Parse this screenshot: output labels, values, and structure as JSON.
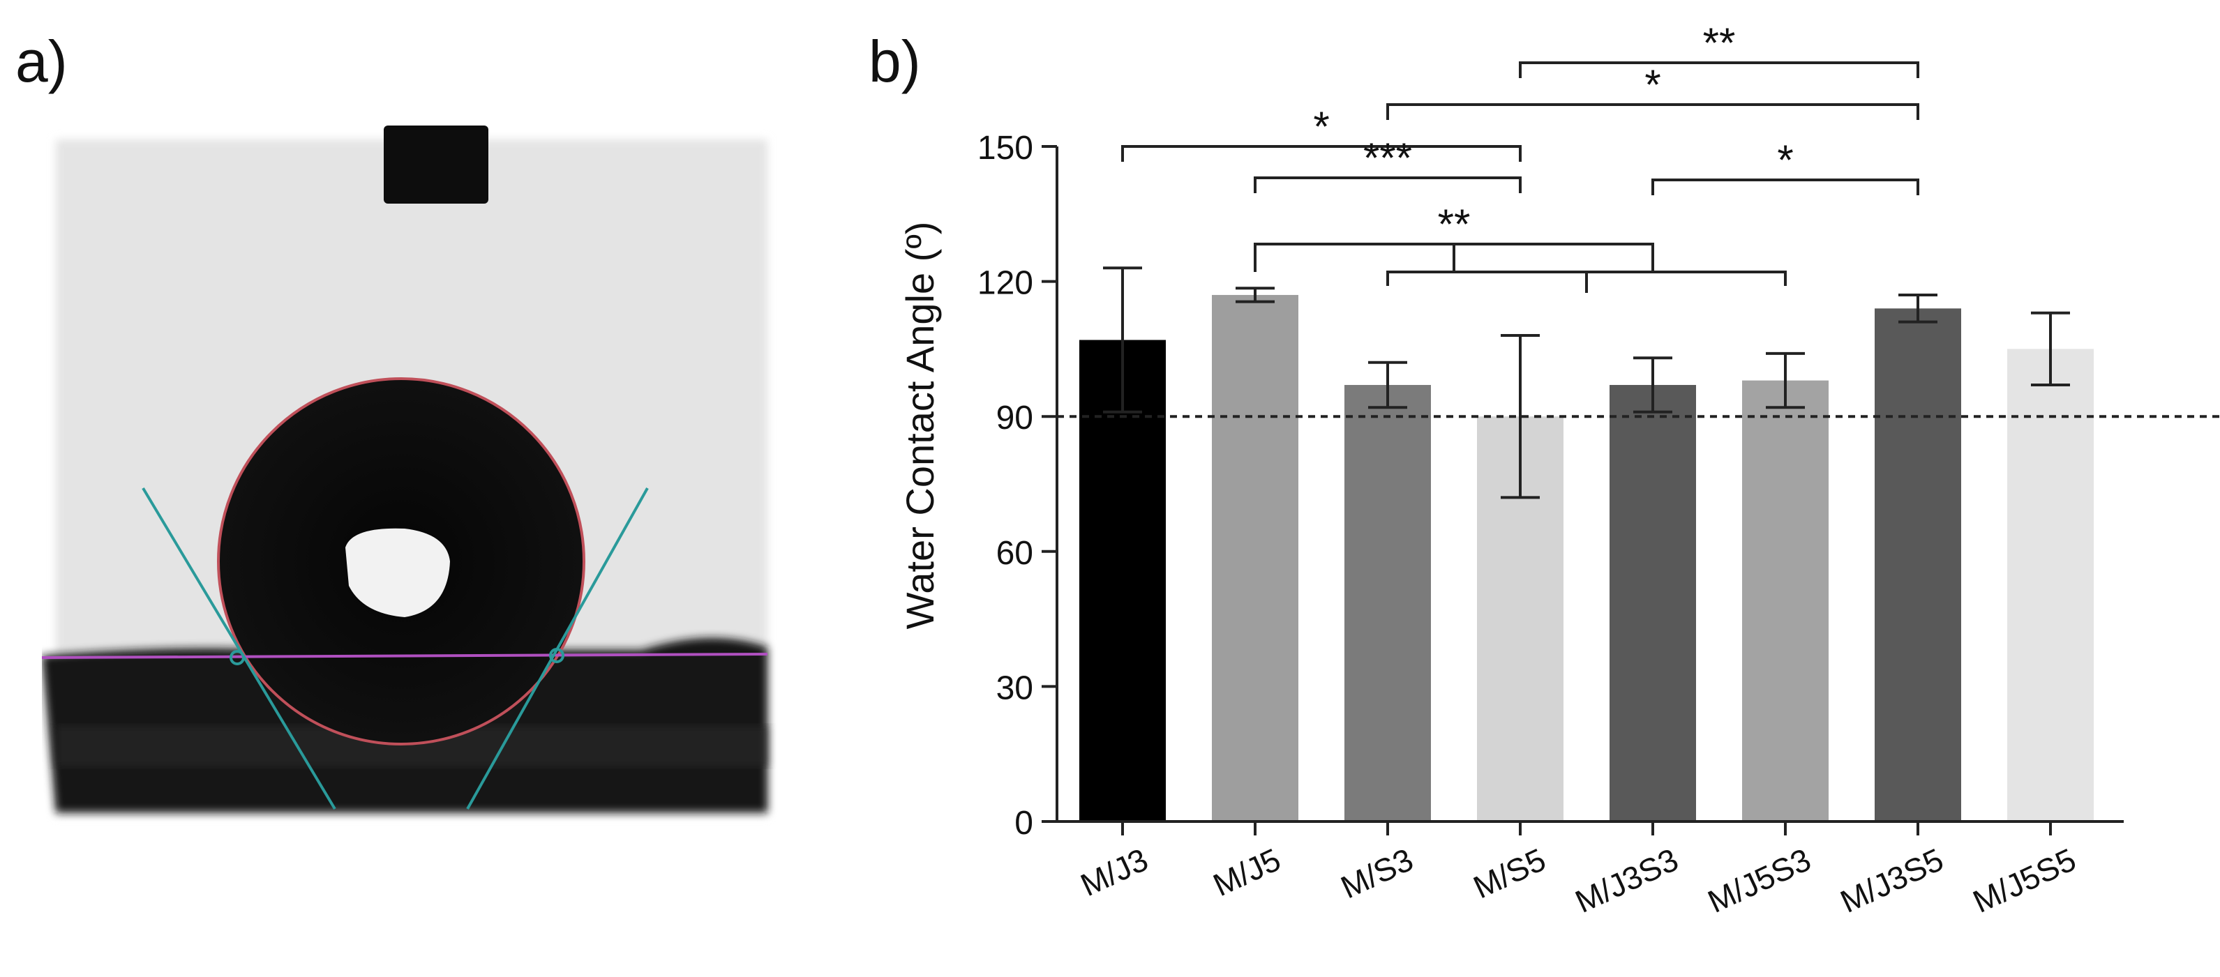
{
  "panels": {
    "a_label": "a)",
    "b_label": "b)"
  },
  "photo": {
    "subject": "sessile water droplet on membrane surface"
  },
  "chart_data": {
    "type": "bar",
    "title": "",
    "xlabel": "",
    "ylabel": "Water Contact Angle (º)",
    "ylim": [
      0,
      150
    ],
    "yticks": [
      0,
      30,
      60,
      90,
      120,
      150
    ],
    "reference_line": 90,
    "categories": [
      "M/J3",
      "M/J5",
      "M/S3",
      "M/S5",
      "M/J3S3",
      "M/J5S3",
      "M/J3S5",
      "M/J5S5"
    ],
    "values": [
      107,
      117,
      97,
      90,
      97,
      98,
      114,
      105
    ],
    "errors": [
      16,
      1.5,
      5,
      18,
      6,
      6,
      3,
      8
    ],
    "colors": [
      "#000000",
      "#9e9e9e",
      "#7b7b7b",
      "#d4d4d4",
      "#595959",
      "#a3a3a3",
      "#595959",
      "#e4e4e4"
    ],
    "significance": [
      {
        "from": "M/J3",
        "to": "M/S5",
        "label": "*"
      },
      {
        "from": "M/J5",
        "to": "M/S5",
        "label": "***"
      },
      {
        "from": "M/S3",
        "to": "M/J3S5",
        "label": "*"
      },
      {
        "from": "M/S5",
        "to": "M/J3S5",
        "label": "**"
      },
      {
        "from": "M/J3S3",
        "to": "M/J3S5",
        "label": "*"
      },
      {
        "from": "M/J5",
        "to": "M/J3S3",
        "label": "**"
      },
      {
        "from": "M/S3",
        "to": "M/J5S3",
        "label": ""
      }
    ]
  }
}
